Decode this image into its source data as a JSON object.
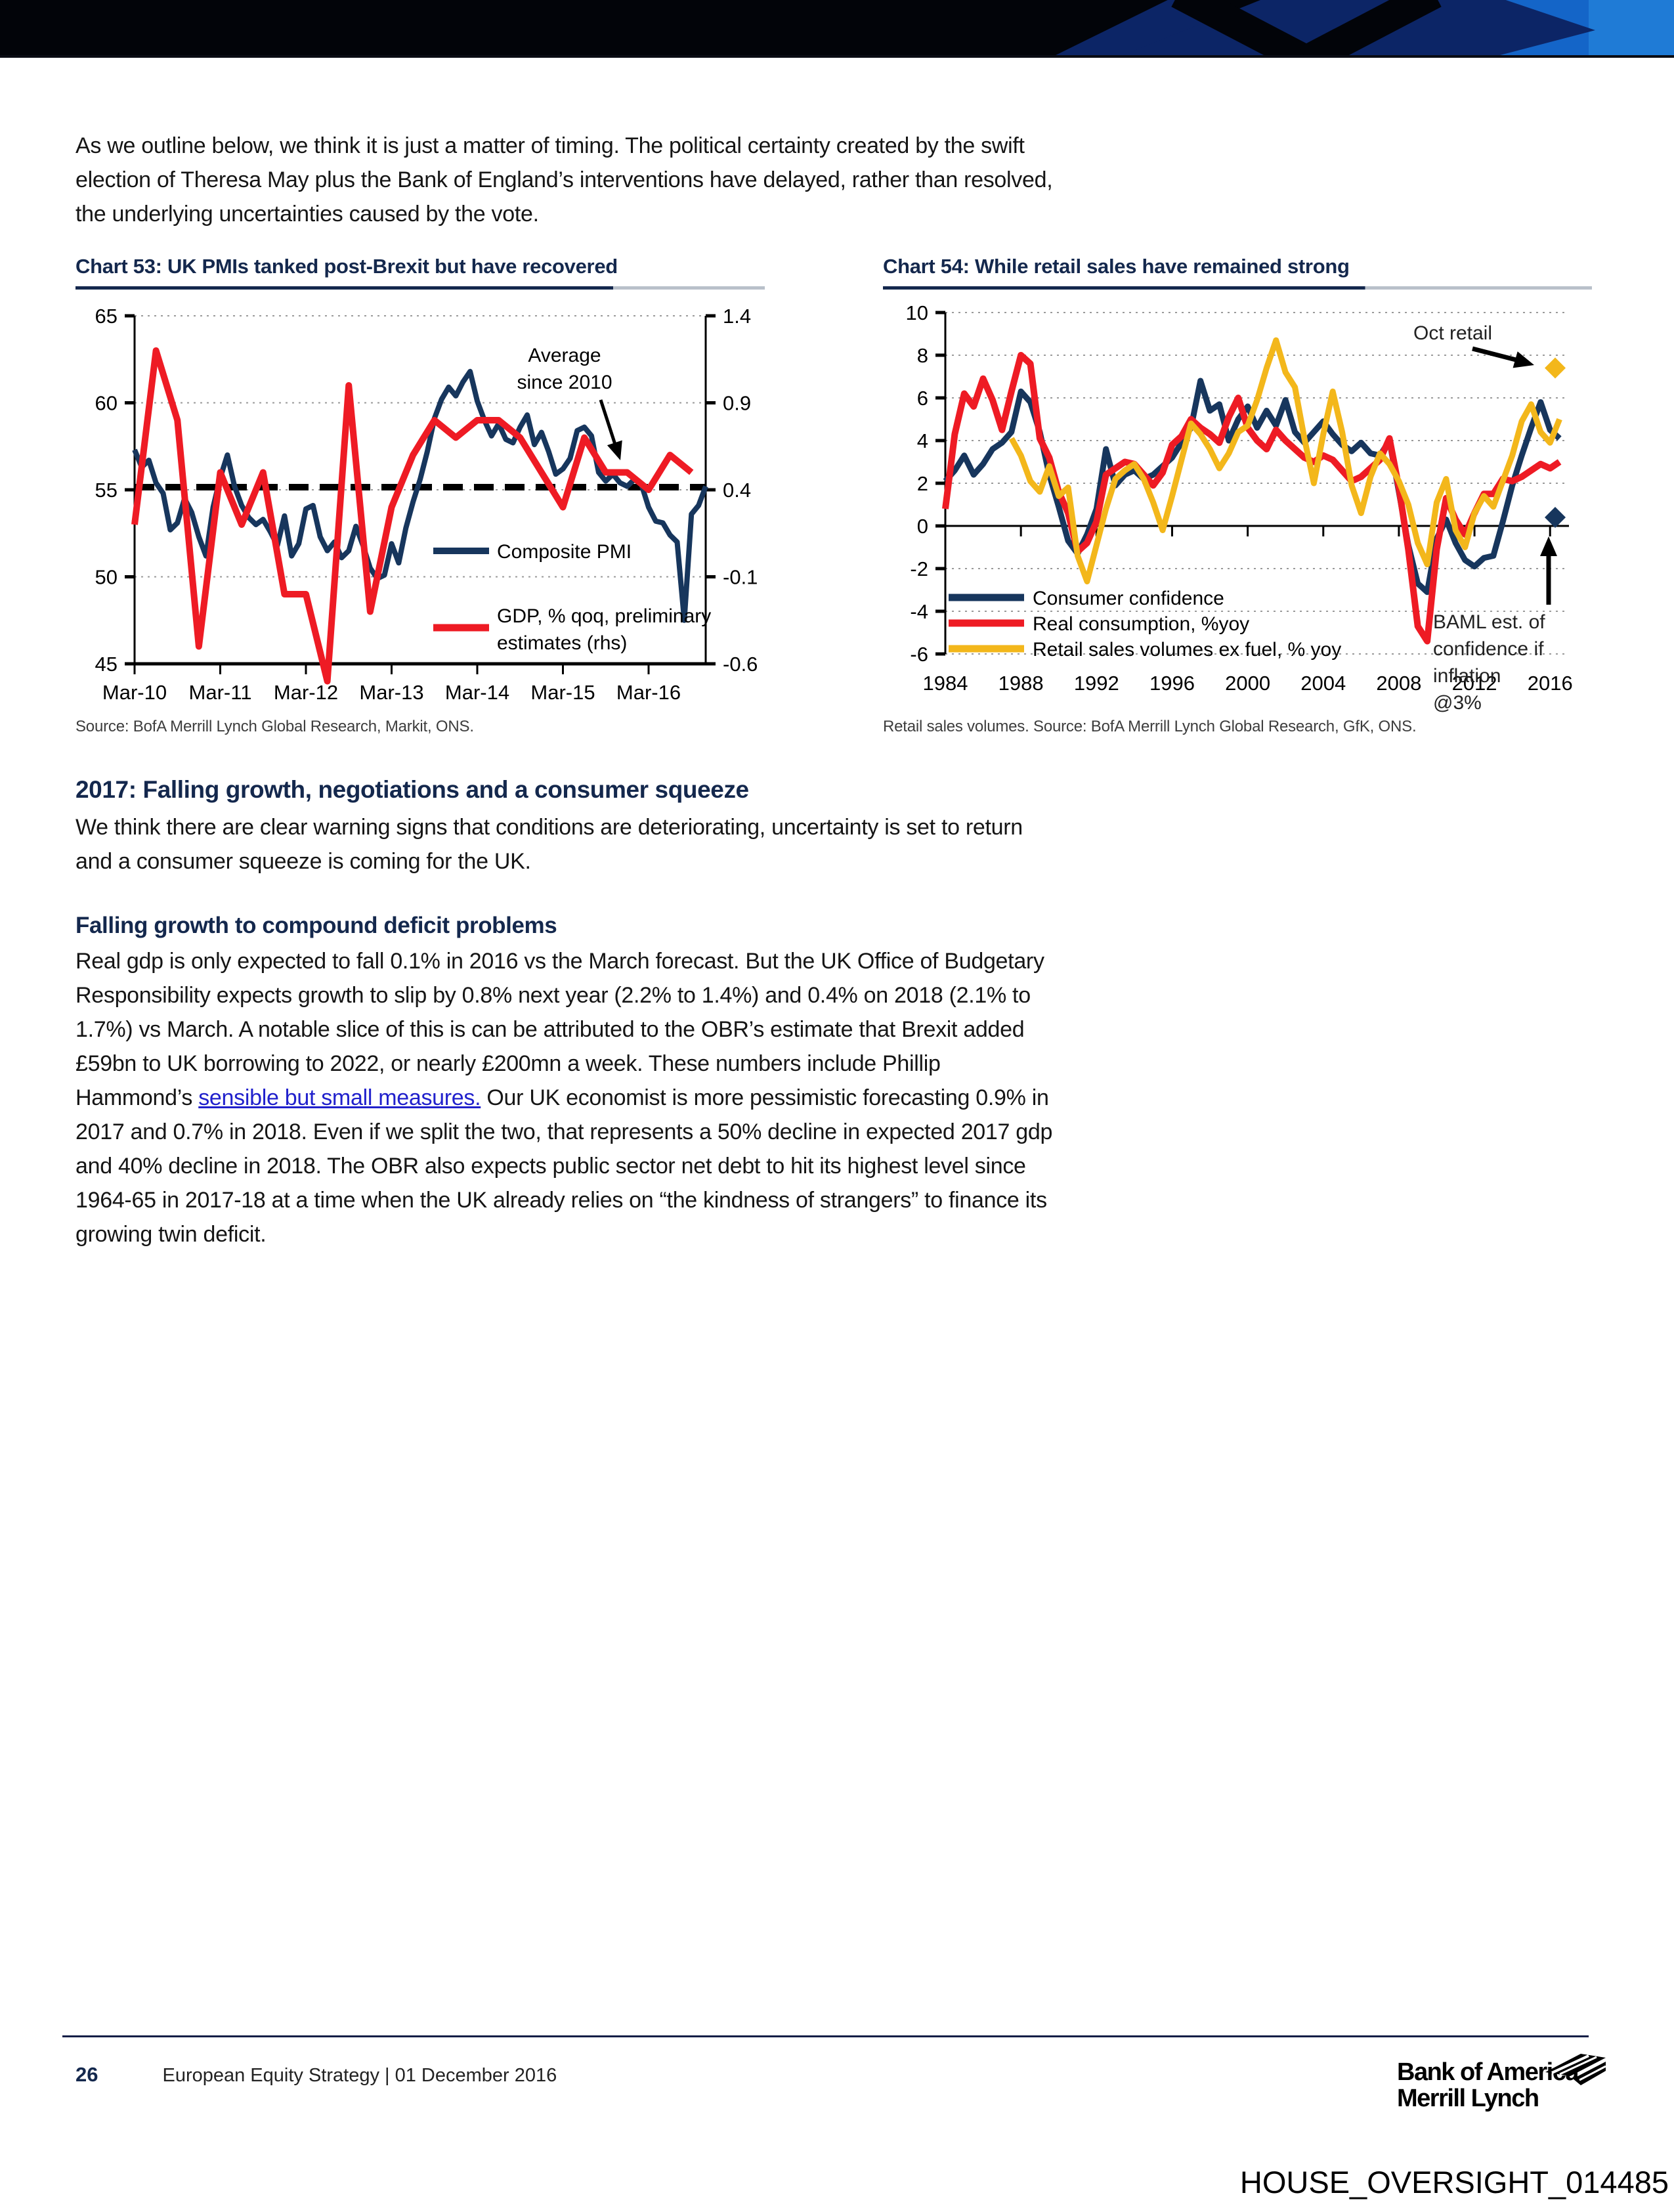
{
  "banner": {
    "colors": {
      "black": "#020409",
      "navy": "#0c2566",
      "blue": "#1465c8",
      "light_blue": "#1f7bd6"
    }
  },
  "content": {
    "intro": "As we outline below, we think it is just a matter of timing. The political certainty created by the swift election of Theresa May plus the Bank of England’s interventions have delayed, rather than resolved, the underlying uncertainties caused by the vote.",
    "heading1": "2017: Falling growth, negotiations and a consumer squeeze",
    "para1": "We think there are clear warning signs that conditions are deteriorating, uncertainty is set to return and a consumer squeeze is coming for the UK.",
    "heading2": "Falling growth to compound deficit problems",
    "para2_pre": "Real gdp is only expected to fall 0.1% in 2016 vs the March forecast. But the UK Office of Budgetary Responsibility expects growth to slip by 0.8% next year (2.2% to 1.4%) and 0.4% on 2018 (2.1% to 1.7%) vs March. A notable slice of this is can be attributed to the OBR’s estimate that Brexit added £59bn to UK borrowing to 2022, or nearly £200mn a week. These numbers include Phillip Hammond’s ",
    "para2_link": "sensible but small measures.",
    "para2_post": " Our UK economist is more pessimistic forecasting 0.9% in 2017 and 0.7% in 2018. Even if we split the two, that represents a 50% decline in expected 2017 gdp and 40% decline in 2018. The OBR also expects public sector net debt to hit its highest level since 1964-65 in 2017-18 at a time when the UK already relies on “the kindness of strangers” to finance its growing twin deficit."
  },
  "chart_data": [
    {
      "type": "line",
      "title": "Chart 53: UK PMIs tanked post-Brexit but have recovered",
      "source": "Source: BofA Merrill Lynch Global Research, Markit, ONS.",
      "x_tick_labels": [
        "Mar-10",
        "Mar-11",
        "Mar-12",
        "Mar-13",
        "Mar-14",
        "Mar-15",
        "Mar-16"
      ],
      "x_tick_indices": [
        0,
        12,
        24,
        36,
        48,
        60,
        72
      ],
      "left_axis": {
        "min": 45,
        "max": 65,
        "ticks": [
          65,
          60,
          55,
          50,
          45
        ]
      },
      "right_axis": {
        "min": -0.6,
        "max": 1.4,
        "ticks": [
          1.4,
          0.9,
          0.4,
          -0.1,
          -0.6
        ],
        "labels": [
          "1.4",
          "0.9",
          "0.4",
          "-0.1",
          "-0.6"
        ]
      },
      "average_line": {
        "value": 55.15,
        "label": "Average since 2010",
        "label_lines": [
          "Average",
          "since 2010"
        ]
      },
      "legend2_lines": [
        "GDP, % qoq, preliminary",
        "estimates (rhs)"
      ],
      "series": [
        {
          "name": "Composite PMI",
          "color": "#17365d",
          "axis": "left",
          "values": [
            57.3,
            56.3,
            56.7,
            55.4,
            54.8,
            52.7,
            53.1,
            54.5,
            53.7,
            52.3,
            51.2,
            54.0,
            55.7,
            57.0,
            55.2,
            54.1,
            53.4,
            53.0,
            53.3,
            52.6,
            51.8,
            53.5,
            51.2,
            51.9,
            53.9,
            54.1,
            52.3,
            51.5,
            52.0,
            51.1,
            51.5,
            52.9,
            51.8,
            50.5,
            49.9,
            50.1,
            51.9,
            50.8,
            52.8,
            54.3,
            55.6,
            57.2,
            59.1,
            60.2,
            60.9,
            60.4,
            61.2,
            61.8,
            60.1,
            59.0,
            58.1,
            58.8,
            57.9,
            57.7,
            58.6,
            59.3,
            57.6,
            58.3,
            57.2,
            55.9,
            56.2,
            56.8,
            58.4,
            58.6,
            58.1,
            56.0,
            55.5,
            55.9,
            55.4,
            55.2,
            55.6,
            55.3,
            54.0,
            53.2,
            53.1,
            52.4,
            52.0,
            47.5,
            53.6,
            54.1,
            55.2
          ]
        },
        {
          "name": "GDP, % qoq, preliminary estimates (rhs)",
          "color": "#ee1b24",
          "axis": "right",
          "x_step": 3,
          "values": [
            0.2,
            1.2,
            0.8,
            -0.5,
            0.5,
            0.2,
            0.5,
            -0.2,
            -0.2,
            -0.7,
            1.0,
            -0.3,
            0.3,
            0.6,
            0.8,
            0.7,
            0.8,
            0.8,
            0.7,
            0.5,
            0.3,
            0.7,
            0.5,
            0.5,
            0.4,
            0.6,
            0.5
          ]
        }
      ]
    },
    {
      "type": "line",
      "title": "Chart 54: While retail sales have remained strong",
      "source": "Retail sales volumes. Source: BofA Merrill Lynch Global Research, GfK, ONS.",
      "x_start": 1984,
      "x_step": 0.5,
      "x_ticks": [
        1984,
        1988,
        1992,
        1996,
        2000,
        2004,
        2008,
        2012,
        2016
      ],
      "y_axis": {
        "min": -6,
        "max": 10,
        "ticks": [
          10,
          8,
          6,
          4,
          2,
          0,
          -2,
          -4,
          -6
        ]
      },
      "series": [
        {
          "name": "Consumer confidence",
          "color": "#17365d",
          "width": 9,
          "values": [
            2.1,
            2.6,
            3.3,
            2.4,
            2.9,
            3.6,
            3.9,
            4.4,
            6.3,
            5.8,
            4.4,
            2.4,
            0.9,
            -0.7,
            -1.3,
            -0.4,
            0.8,
            3.6,
            1.9,
            2.4,
            2.6,
            2.2,
            2.4,
            2.8,
            3.2,
            3.9,
            4.6,
            6.8,
            5.4,
            5.7,
            4.0,
            5.0,
            5.6,
            4.6,
            5.4,
            4.7,
            5.9,
            4.4,
            3.9,
            4.4,
            4.9,
            4.3,
            3.8,
            3.5,
            3.9,
            3.4,
            3.3,
            4.0,
            1.6,
            -0.9,
            -2.7,
            -3.1,
            -0.6,
            0.3,
            -0.8,
            -1.6,
            -1.9,
            -1.5,
            -1.4,
            0.2,
            1.9,
            3.3,
            4.6,
            5.8,
            4.5,
            4.1
          ]
        },
        {
          "name": "Real consumption, %yoy",
          "color": "#ee1b24",
          "width": 10,
          "values": [
            0.8,
            4.3,
            6.2,
            5.6,
            6.9,
            5.9,
            4.5,
            6.3,
            8.0,
            7.6,
            4.1,
            3.2,
            1.6,
            0.6,
            -1.2,
            -0.8,
            0.2,
            2.4,
            2.7,
            3.0,
            2.9,
            2.4,
            1.9,
            2.5,
            3.8,
            4.2,
            5.0,
            4.6,
            4.3,
            3.9,
            5.1,
            6.0,
            4.6,
            4.0,
            3.6,
            4.5,
            4.0,
            3.6,
            3.2,
            3.0,
            3.3,
            3.1,
            2.6,
            2.1,
            2.3,
            2.7,
            3.1,
            4.1,
            1.8,
            -1.1,
            -4.7,
            -5.4,
            -1.1,
            1.3,
            0.3,
            -0.4,
            0.6,
            1.5,
            1.5,
            2.2,
            2.1,
            2.3,
            2.6,
            2.9,
            2.7,
            3.0
          ]
        },
        {
          "name": "Retail sales volumes ex fuel, % yoy",
          "color": "#f3b71b",
          "width": 9,
          "values": [
            null,
            null,
            null,
            null,
            null,
            null,
            null,
            4.1,
            3.3,
            2.1,
            1.6,
            2.8,
            1.4,
            1.8,
            -1.4,
            -2.6,
            -0.9,
            0.8,
            2.2,
            2.6,
            2.9,
            2.2,
            1.1,
            -0.2,
            1.4,
            3.1,
            4.8,
            4.3,
            3.6,
            2.7,
            3.4,
            4.4,
            4.7,
            5.9,
            7.4,
            8.7,
            7.2,
            6.5,
            4.1,
            2.0,
            4.3,
            6.3,
            4.4,
            1.9,
            0.6,
            2.3,
            3.4,
            2.9,
            2.1,
            1.0,
            -0.8,
            -1.8,
            1.1,
            2.2,
            -0.2,
            -1.0,
            0.6,
            1.4,
            0.9,
            2.1,
            3.3,
            4.9,
            5.7,
            4.4,
            3.9,
            5.0
          ]
        }
      ],
      "markers": [
        {
          "label": "Oct retail",
          "value": 7.4,
          "color": "#f3b71b"
        },
        {
          "label": "BAML est. of confidence if inflation @3%",
          "label_lines": [
            "BAML est. of",
            "confidence if",
            "inflation",
            "@3%"
          ],
          "value": 0.4,
          "color": "#17365d"
        }
      ]
    }
  ],
  "footer": {
    "page_number": "26",
    "doc_title": "European Equity Strategy | 01 December 2016",
    "brand_line1": "Bank of America",
    "brand_line2": "Merrill Lynch"
  },
  "watermark": {
    "text": "HOUSE_OVERSIGHT_014485"
  }
}
